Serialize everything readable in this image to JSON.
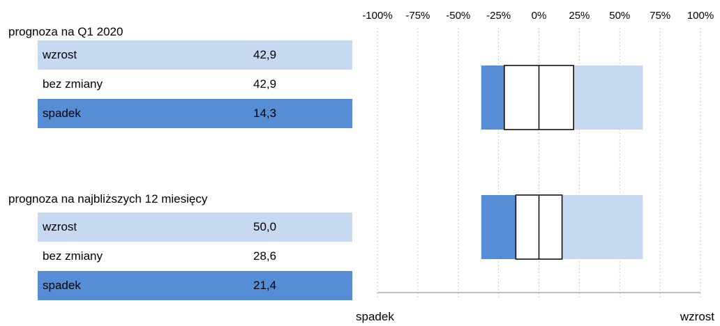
{
  "sections": [
    {
      "title": "prognoza na Q1 2020",
      "rows": [
        {
          "label": "wzrost",
          "value": "42,9"
        },
        {
          "label": "bez zmiany",
          "value": "42,9"
        },
        {
          "label": "spadek",
          "value": "14,3"
        }
      ]
    },
    {
      "title": "prognoza na najbliższych 12 miesięcy",
      "rows": [
        {
          "label": "wzrost",
          "value": "50,0"
        },
        {
          "label": "bez zmiany",
          "value": "28,6"
        },
        {
          "label": "spadek",
          "value": "21,4"
        }
      ]
    }
  ],
  "chart_data": {
    "type": "bar",
    "subtype": "diverging-stacked-horizontal",
    "xlim": [
      -100,
      100
    ],
    "ticks": [
      "-100%",
      "-75%",
      "-50%",
      "-25%",
      "0%",
      "25%",
      "50%",
      "75%",
      "100%"
    ],
    "tick_values": [
      -100,
      -75,
      -50,
      -25,
      0,
      25,
      50,
      75,
      100
    ],
    "axis_left_label": "spadek",
    "axis_right_label": "wzrost",
    "grid": true,
    "bars": [
      {
        "category": "prognoza na Q1 2020",
        "spadek": 14.3,
        "bez_zmiany": 42.9,
        "wzrost": 42.9
      },
      {
        "category": "prognoza na najbliższych 12 miesięcy",
        "spadek": 21.4,
        "bez_zmiany": 28.6,
        "wzrost": 50.0
      }
    ],
    "colors": {
      "spadek": "#558ed5",
      "bez_zmiany": "#ffffff",
      "wzrost": "#c6d9f0",
      "outline": "#000000",
      "grid": "#c8c8c8"
    }
  }
}
